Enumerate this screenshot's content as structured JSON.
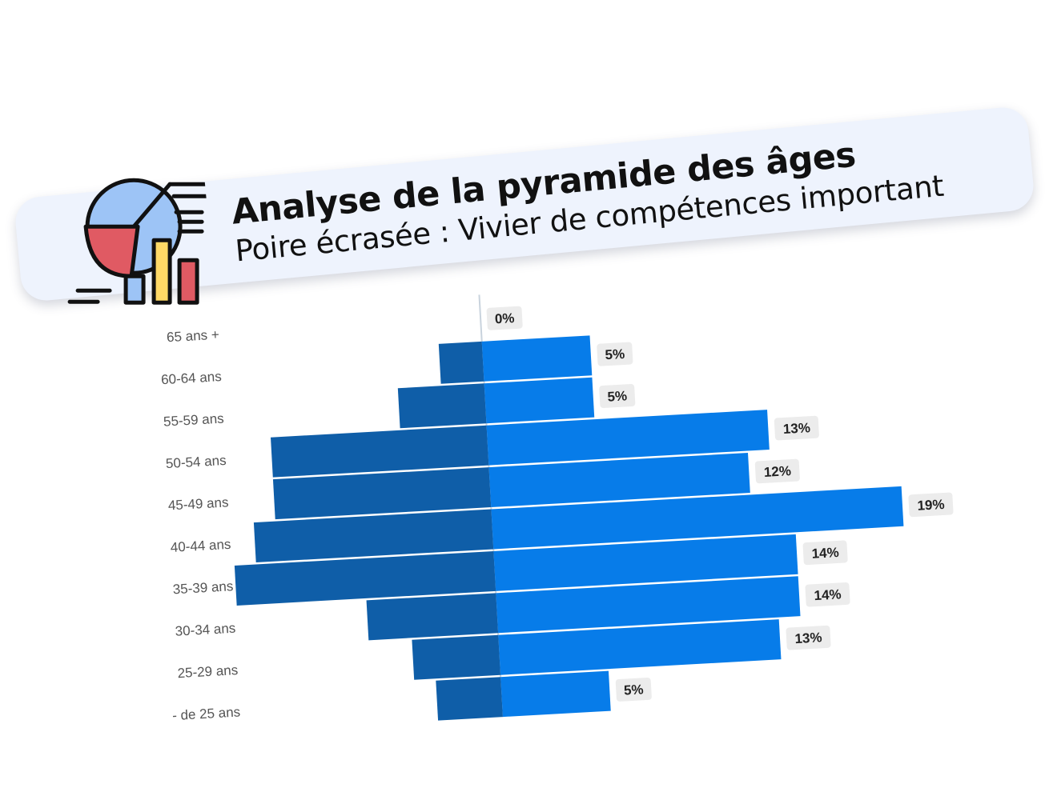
{
  "banner": {
    "title": "Analyse de la pyramide des âges",
    "subtitle": "Poire écrasée : Vivier de compétences important"
  },
  "colors": {
    "left_bar": "#0f5ea8",
    "right_bar": "#077ce9",
    "label_bg": "#ececec",
    "banner_bg": "#eef3fd"
  },
  "icon": "chart-analytics-icon",
  "chart_data": {
    "type": "bar",
    "orientation": "horizontal",
    "layout": "population-pyramid",
    "categories": [
      "- de 25 ans",
      "25-29 ans",
      "30-34 ans",
      "35-39 ans",
      "40-44 ans",
      "45-49 ans",
      "50-54 ans",
      "55-59 ans",
      "60-64 ans",
      "65 ans +"
    ],
    "series": [
      {
        "side": "left",
        "values": [
          3,
          4,
          6,
          12,
          11,
          10,
          10,
          4,
          2,
          0
        ]
      },
      {
        "side": "right",
        "values": [
          5,
          13,
          14,
          14,
          19,
          12,
          13,
          5,
          5,
          0
        ]
      }
    ],
    "value_labels": [
      "5%",
      "13%",
      "14%",
      "14%",
      "19%",
      "12%",
      "13%",
      "5%",
      "5%",
      "0%"
    ],
    "grid": false,
    "legend": "none"
  }
}
